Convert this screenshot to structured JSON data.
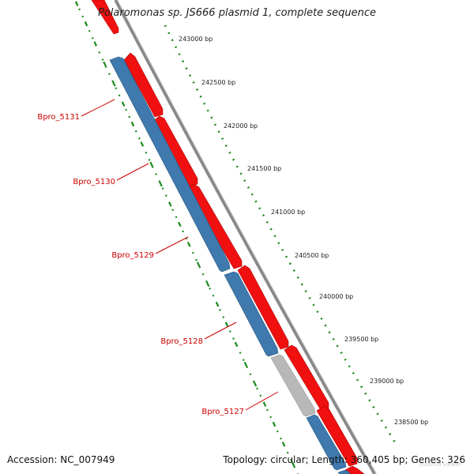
{
  "title": "Polaromonas sp. JS666 plasmid 1, complete sequence",
  "footer": {
    "accession": "Accession: NC_007949",
    "summary": "Topology: circular; Length: 360,405 bp; Genes: 326"
  },
  "watermark": "plasmid viewer",
  "colors": {
    "forward_gene": "#f01010",
    "reverse_gene": "#3f79ad",
    "other_gene": "#b8b8b8",
    "backbone": "#888888",
    "ticks": "#1b8a1b",
    "gene_label": "#cc0000"
  },
  "coordinate_labels": [
    {
      "text": "243000 bp",
      "position_bp": 243000
    },
    {
      "text": "242500 bp",
      "position_bp": 242500
    },
    {
      "text": "242000 bp",
      "position_bp": 242000
    },
    {
      "text": "241500 bp",
      "position_bp": 241500
    },
    {
      "text": "241000 bp",
      "position_bp": 241000
    },
    {
      "text": "240500 bp",
      "position_bp": 240500
    },
    {
      "text": "240000 bp",
      "position_bp": 240000
    },
    {
      "text": "239500 bp",
      "position_bp": 239500
    },
    {
      "text": "239000 bp",
      "position_bp": 239000
    },
    {
      "text": "238500 bp",
      "position_bp": 238500
    }
  ],
  "gene_labels": [
    "Bpro_5131",
    "Bpro_5130",
    "Bpro_5129",
    "Bpro_5128",
    "Bpro_5127"
  ],
  "forward_genes": 9,
  "reverse_genes": 5,
  "other_genes": 1
}
